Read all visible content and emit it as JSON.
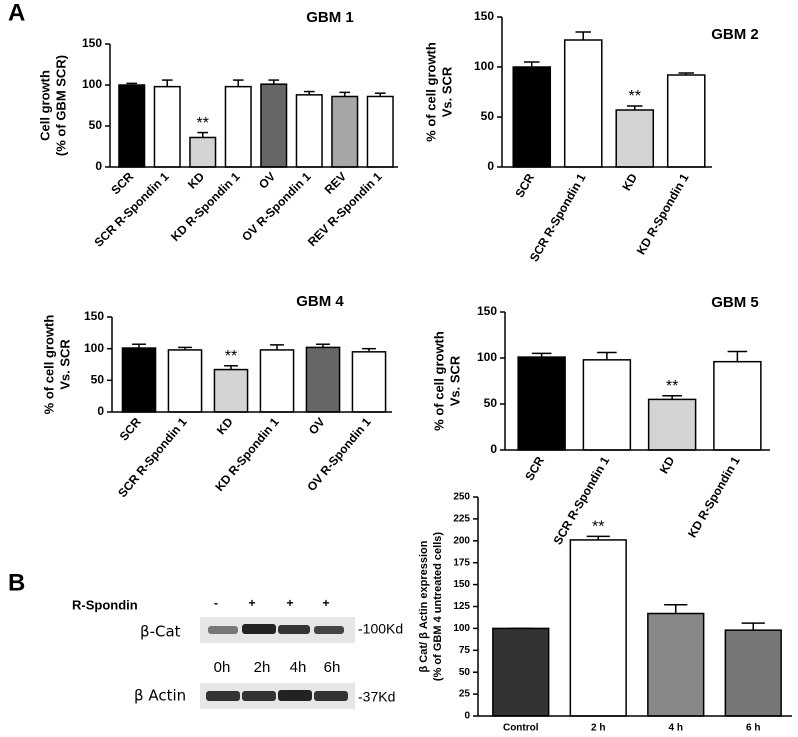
{
  "panel_labels": [
    "A",
    "B"
  ],
  "chart_data": [
    {
      "type": "bar",
      "title": "GBM 1",
      "ylabel": [
        "Cell growth",
        "(% of GBM SCR)"
      ],
      "categories": [
        "SCR",
        "SCR R-Spondin 1",
        "KD",
        "KD R-Spondin 1",
        "OV",
        "OV R-Spondin 1",
        "REV",
        "REV R-Spondin 1"
      ],
      "values": [
        100,
        98,
        36,
        98,
        101,
        88,
        86,
        86
      ],
      "errors": [
        2,
        8,
        6,
        8,
        5,
        4,
        5,
        4
      ],
      "colors": [
        "#000000",
        "#ffffff",
        "#d3d3d3",
        "#ffffff",
        "#666666",
        "#ffffff",
        "#a6a6a6",
        "#ffffff"
      ],
      "annotations": [
        {
          "text": "**",
          "category": "KD"
        }
      ],
      "ylim": [
        0,
        150
      ],
      "yticks": [
        0,
        50,
        100,
        150
      ]
    },
    {
      "type": "bar",
      "title": "GBM 2",
      "ylabel": [
        "% of cell growth",
        "Vs. SCR"
      ],
      "categories": [
        "SCR",
        "SCR R-Spondin 1",
        "KD",
        "KD R-Spondin 1"
      ],
      "values": [
        100,
        127,
        57,
        92
      ],
      "errors": [
        5,
        8,
        4,
        2
      ],
      "colors": [
        "#000000",
        "#ffffff",
        "#d3d3d3",
        "#ffffff"
      ],
      "annotations": [
        {
          "text": "**",
          "category": "KD"
        }
      ],
      "ylim": [
        0,
        150
      ],
      "yticks": [
        0,
        50,
        100,
        150
      ]
    },
    {
      "type": "bar",
      "title": "GBM 4",
      "ylabel": [
        "% of cell growth",
        "Vs. SCR"
      ],
      "categories": [
        "SCR",
        "SCR R-Spondin 1",
        "KD",
        "KD R-Spondin 1",
        "OV",
        "OV R-Spondin 1"
      ],
      "values": [
        101,
        98,
        67,
        98,
        102,
        95
      ],
      "errors": [
        6,
        4,
        6,
        8,
        5,
        5
      ],
      "colors": [
        "#000000",
        "#ffffff",
        "#d3d3d3",
        "#ffffff",
        "#666666",
        "#ffffff"
      ],
      "annotations": [
        {
          "text": "**",
          "category": "KD"
        }
      ],
      "ylim": [
        0,
        150
      ],
      "yticks": [
        0,
        50,
        100,
        150
      ]
    },
    {
      "type": "bar",
      "title": "GBM 5",
      "ylabel": [
        "% of cell growth",
        "Vs. SCR"
      ],
      "categories": [
        "SCR",
        "SCR R-Spondin 1",
        "KD",
        "KD  R-Spondin 1"
      ],
      "values": [
        101,
        98,
        55,
        96
      ],
      "errors": [
        4,
        8,
        4,
        11
      ],
      "colors": [
        "#000000",
        "#ffffff",
        "#d3d3d3",
        "#ffffff"
      ],
      "annotations": [
        {
          "text": "**",
          "category": "KD"
        }
      ],
      "ylim": [
        0,
        150
      ],
      "yticks": [
        0,
        50,
        100,
        150
      ]
    },
    {
      "type": "bar",
      "ylabel": [
        "β Cat/ β Actin expression",
        "(% of GBM 4 untreated cells)"
      ],
      "categories": [
        "Control",
        "2 h",
        "4 h",
        "6 h"
      ],
      "values": [
        100,
        201,
        117,
        98
      ],
      "errors": [
        0,
        4,
        10,
        8
      ],
      "colors": [
        "#333333",
        "#ffffff",
        "#888888",
        "#777777"
      ],
      "annotations": [
        {
          "text": "**",
          "category": "2 h"
        }
      ],
      "ylim": [
        0,
        250
      ],
      "yticks": [
        0,
        25,
        50,
        75,
        100,
        125,
        150,
        175,
        200,
        225,
        250
      ]
    }
  ],
  "blot": {
    "treatment": "R-Spondin",
    "signs": [
      "-",
      "+",
      "+",
      "+"
    ],
    "target": "β-Cat",
    "target_size": "-100Kd",
    "times": [
      "0h",
      "2h",
      "4h",
      "6h"
    ],
    "control": "β Actin",
    "control_size": "-37Kd"
  }
}
